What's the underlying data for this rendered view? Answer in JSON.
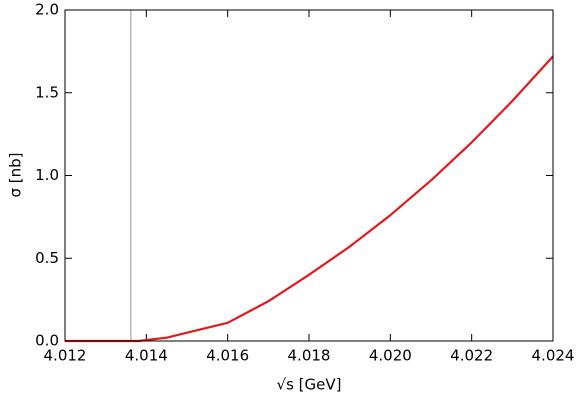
{
  "chart_data": {
    "type": "line",
    "x_label": "√s  [GeV]",
    "y_label": "σ [nb]",
    "x": [
      4.012,
      4.013,
      4.0138,
      4.0145,
      4.015,
      4.016,
      4.017,
      4.018,
      4.019,
      4.02,
      4.021,
      4.022,
      4.023,
      4.024
    ],
    "series": [
      {
        "name": "σ",
        "color": "#e31a1c",
        "values": [
          0,
          0,
          0,
          0.02,
          0.05,
          0.11,
          0.24,
          0.4,
          0.57,
          0.76,
          0.97,
          1.2,
          1.45,
          1.72
        ]
      }
    ],
    "vlines": [
      {
        "x": 4.01362,
        "color": "#999999"
      }
    ],
    "xlim": [
      4.012,
      4.024
    ],
    "xticks": [
      4.012,
      4.014,
      4.016,
      4.018,
      {
        "value": 4.02,
        "label": "4.020"
      },
      4.022,
      4.024
    ],
    "ylim": [
      0,
      2
    ],
    "yticks": [
      {
        "value": 0,
        "label": "0.0"
      },
      {
        "value": 0.5,
        "label": "0.5"
      },
      {
        "value": 1,
        "label": "1.0"
      },
      {
        "value": 1.5,
        "label": "1.5"
      },
      {
        "value": 2,
        "label": "2.0"
      }
    ],
    "grid": false
  }
}
